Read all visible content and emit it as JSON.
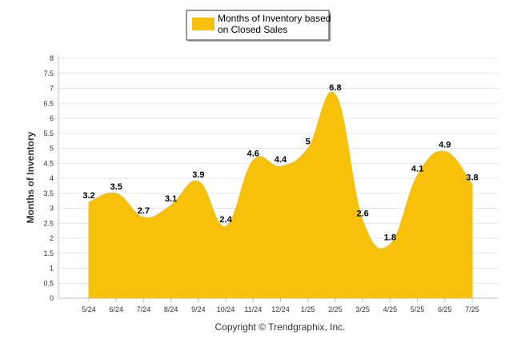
{
  "chart_data": {
    "type": "area",
    "categories": [
      "5/24",
      "6/24",
      "7/24",
      "8/24",
      "9/24",
      "10/24",
      "11/24",
      "12/24",
      "1/25",
      "2/25",
      "3/25",
      "4/25",
      "5/25",
      "6/25",
      "7/25"
    ],
    "series": [
      {
        "name": "Months of Inventory based on Closed Sales",
        "values": [
          3.2,
          3.5,
          2.7,
          3.1,
          3.9,
          2.4,
          4.6,
          4.4,
          5,
          6.8,
          2.6,
          1.8,
          4.1,
          4.9,
          3.8
        ]
      }
    ],
    "data_labels": [
      "3.2",
      "3.5",
      "2.7",
      "3.1",
      "3.9",
      "2.4",
      "4.6",
      "4.4",
      "5",
      "6.8",
      "2.6",
      "1.8",
      "4.1",
      "4.9",
      "3.8"
    ],
    "ylabel": "Months of Inventory",
    "xlabel": "",
    "ylim": [
      0,
      8
    ],
    "yticks": [
      0,
      0.5,
      1,
      1.5,
      2,
      2.5,
      3,
      3.5,
      4,
      4.5,
      5,
      5.5,
      6,
      6.5,
      7,
      7.5,
      8
    ],
    "ytick_labels": [
      "0",
      "0.5",
      "1",
      "1.5",
      "2",
      "2.5",
      "3",
      "3.5",
      "4",
      "4.5",
      "5",
      "5.5",
      "6",
      "6.5",
      "7",
      "7.5",
      "8"
    ],
    "grid": true,
    "legend_position": "top-center",
    "legend_lines": [
      "Months of Inventory based",
      "on Closed Sales"
    ],
    "color": "#F7C10A",
    "footer": "Copyright © Trendgraphix, Inc."
  }
}
